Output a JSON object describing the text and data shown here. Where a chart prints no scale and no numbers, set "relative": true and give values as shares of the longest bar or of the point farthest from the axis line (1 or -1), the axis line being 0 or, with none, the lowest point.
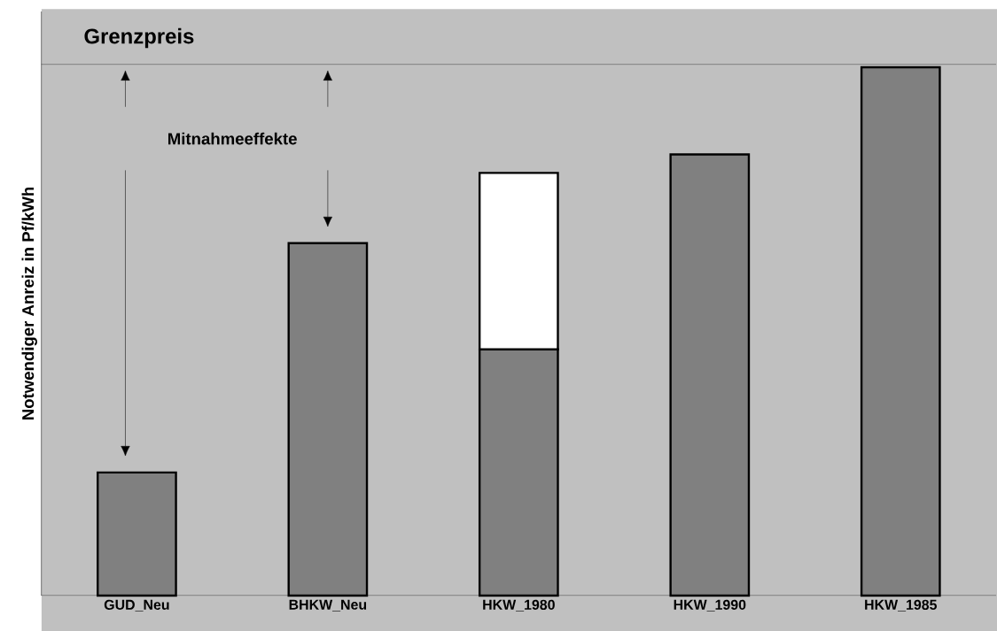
{
  "chart_data": {
    "type": "bar",
    "ylabel": "Notwendiger Anreiz in Pf/kWh",
    "relative": true,
    "stacked": true,
    "categories": [
      "GUD_Neu",
      "BHKW_Neu",
      "HKW_1980",
      "HKW_1990",
      "HKW_1985"
    ],
    "series": [
      {
        "color": "#808080",
        "values": [
          0.233,
          0.667,
          0.466,
          0.835,
          1
        ]
      },
      {
        "color": "#ffffff",
        "values": [
          null,
          null,
          0.334,
          null,
          null
        ]
      }
    ],
    "ref_lines": [
      {
        "axis": "y",
        "value": 1.005,
        "label": "Grenzpreis"
      }
    ],
    "annotations": [
      "Mitnahmeeffekte"
    ]
  }
}
